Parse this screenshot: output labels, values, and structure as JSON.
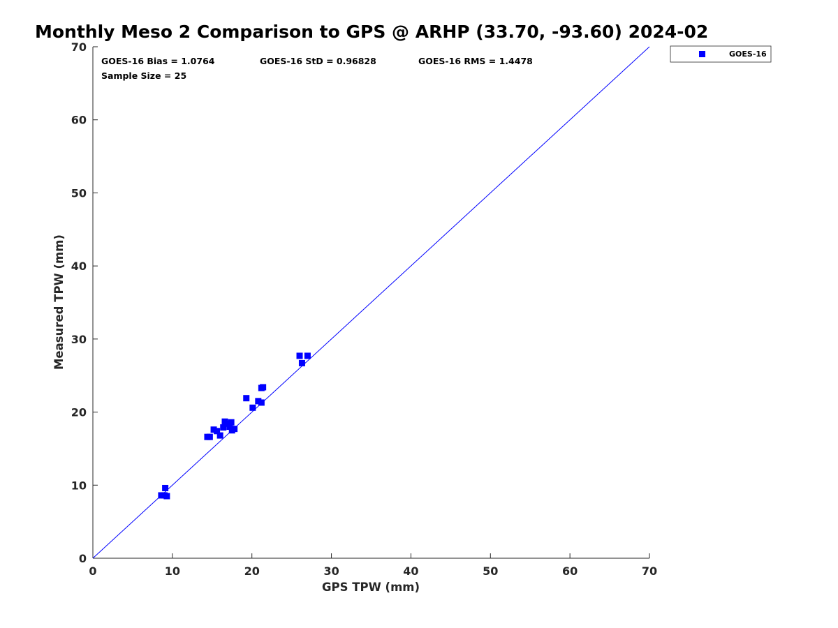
{
  "chart_data": {
    "type": "scatter",
    "title": "Monthly Meso 2 Comparison to GPS @ ARHP (33.70, -93.60) 2024-02",
    "xlabel": "GPS TPW (mm)",
    "ylabel": "Measured TPW (mm)",
    "xlim": [
      0,
      70
    ],
    "ylim": [
      0,
      70
    ],
    "xticks": [
      0,
      10,
      20,
      30,
      40,
      50,
      60,
      70
    ],
    "yticks": [
      0,
      10,
      20,
      30,
      40,
      50,
      60,
      70
    ],
    "grid": false,
    "legend_position": "top-right outside",
    "reference_line": {
      "x": [
        0,
        70
      ],
      "y": [
        0,
        70
      ],
      "color": "#0000ff"
    },
    "stats": [
      "GOES-16 Bias = 1.0764",
      "GOES-16 StD = 0.96828",
      "GOES-16 RMS = 1.4478",
      "Sample Size = 25"
    ],
    "series": [
      {
        "name": "GOES-16",
        "color": "#0000ff",
        "marker": "square",
        "points": [
          {
            "x": 8.6,
            "y": 8.6
          },
          {
            "x": 9.0,
            "y": 8.6
          },
          {
            "x": 9.3,
            "y": 8.5
          },
          {
            "x": 9.1,
            "y": 9.6
          },
          {
            "x": 14.4,
            "y": 16.6
          },
          {
            "x": 14.7,
            "y": 16.6
          },
          {
            "x": 15.2,
            "y": 17.6
          },
          {
            "x": 15.6,
            "y": 17.4
          },
          {
            "x": 16.0,
            "y": 16.8
          },
          {
            "x": 16.4,
            "y": 17.9
          },
          {
            "x": 16.6,
            "y": 18.7
          },
          {
            "x": 17.0,
            "y": 18.4
          },
          {
            "x": 17.4,
            "y": 18.6
          },
          {
            "x": 17.5,
            "y": 17.5
          },
          {
            "x": 17.8,
            "y": 17.7
          },
          {
            "x": 17.2,
            "y": 18.0
          },
          {
            "x": 19.3,
            "y": 21.9
          },
          {
            "x": 20.1,
            "y": 20.6
          },
          {
            "x": 20.8,
            "y": 21.5
          },
          {
            "x": 21.2,
            "y": 21.3
          },
          {
            "x": 21.2,
            "y": 23.3
          },
          {
            "x": 21.4,
            "y": 23.4
          },
          {
            "x": 26.0,
            "y": 27.7
          },
          {
            "x": 26.3,
            "y": 26.7
          },
          {
            "x": 27.0,
            "y": 27.7
          }
        ]
      }
    ]
  }
}
